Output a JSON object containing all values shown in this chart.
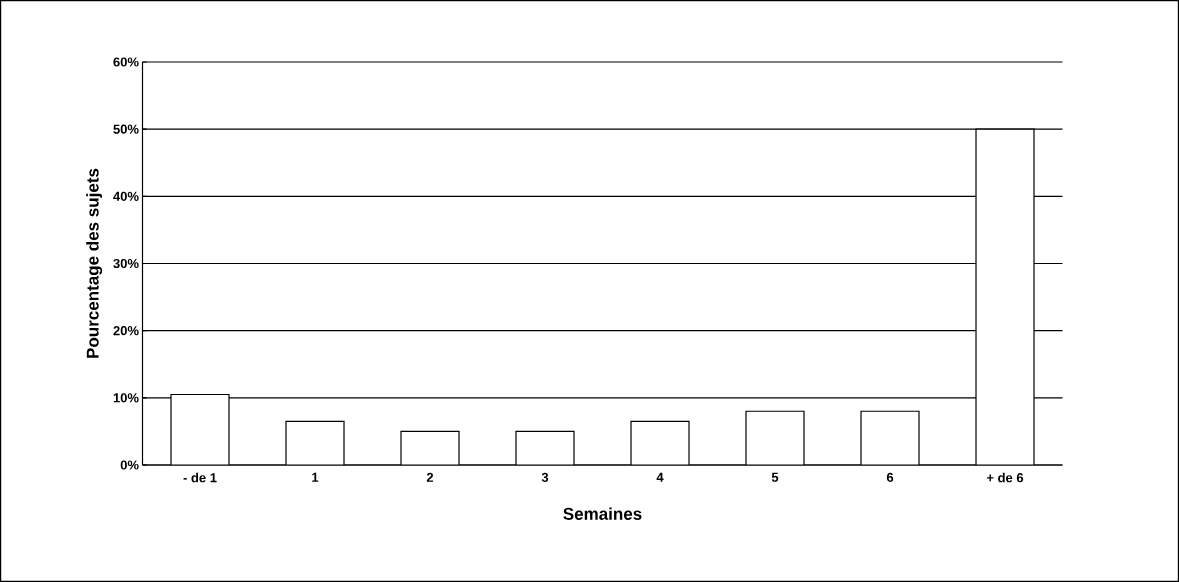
{
  "chart_data": {
    "type": "bar",
    "xlabel": "Semaines",
    "ylabel": "Pourcentage des sujets",
    "categories": [
      "- de 1",
      "1",
      "2",
      "3",
      "4",
      "5",
      "6",
      "+ de 6"
    ],
    "values": [
      10.5,
      6.5,
      5,
      5,
      6.5,
      8,
      8,
      50
    ],
    "color": "#ffffff",
    "ylim": [
      0,
      60
    ],
    "yticks": [
      {
        "value": 0,
        "label": "0%"
      },
      {
        "value": 10,
        "label": "10%"
      },
      {
        "value": 20,
        "label": "20%"
      },
      {
        "value": 30,
        "label": "30%"
      },
      {
        "value": 40,
        "label": "40%"
      },
      {
        "value": 50,
        "label": "50%"
      },
      {
        "value": 60,
        "label": "60%"
      }
    ],
    "grid": "y"
  }
}
